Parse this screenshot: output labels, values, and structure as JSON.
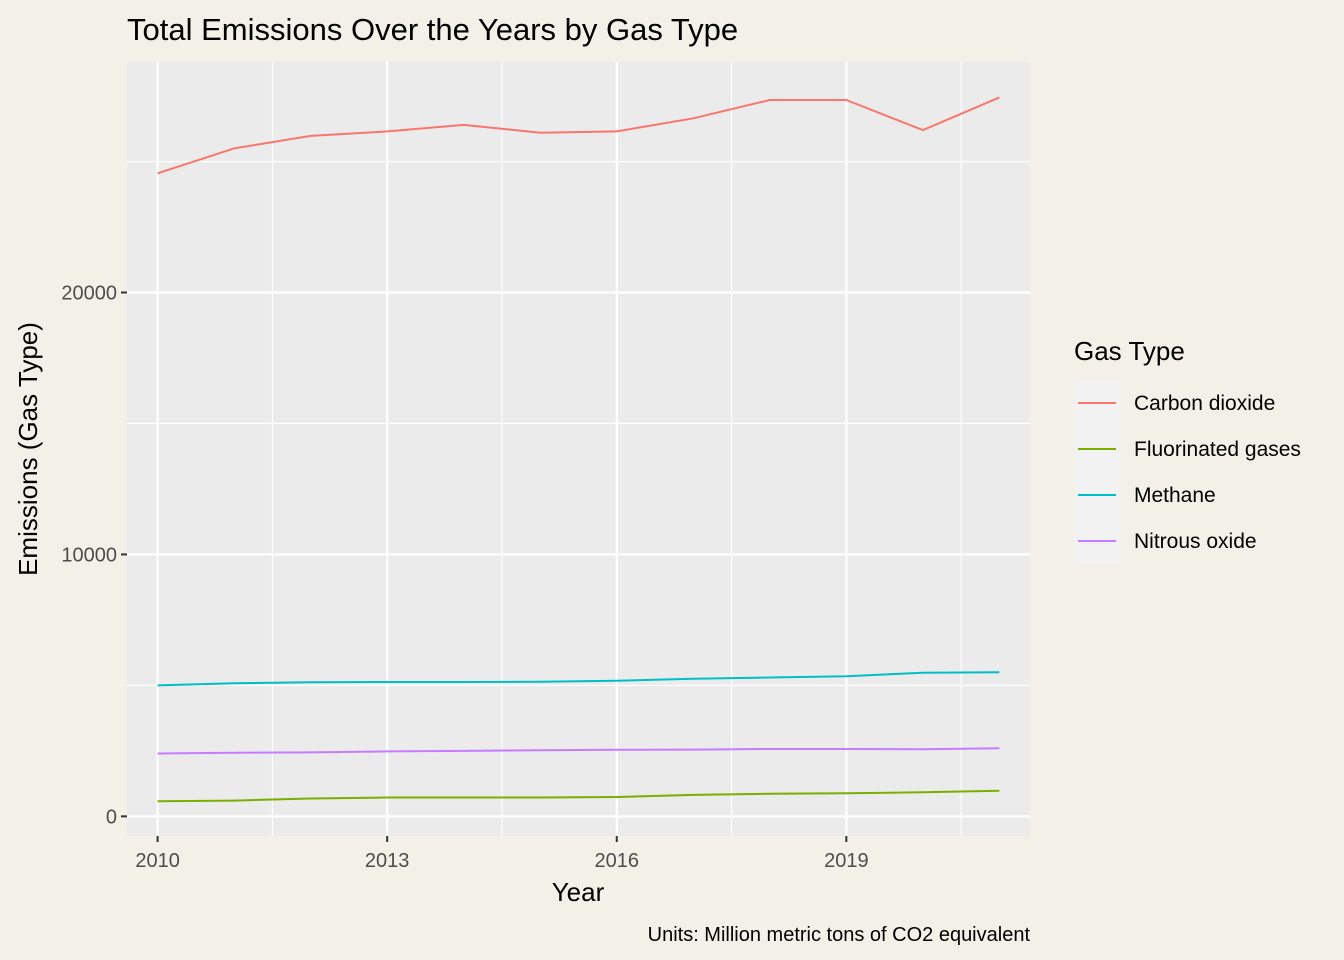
{
  "chart_data": {
    "type": "line",
    "title": "Total Emissions Over the Years by Gas Type",
    "xlabel": "Year",
    "ylabel": "Emissions (Gas Type)",
    "caption": "Units: Million metric tons of CO2 equivalent",
    "legend_title": "Gas Type",
    "legend_position": "right",
    "grid": true,
    "xlim": [
      2009.6,
      2021.4
    ],
    "ylim": [
      -750,
      28800
    ],
    "x_ticks": [
      2010,
      2013,
      2016,
      2019
    ],
    "x_tick_labels": [
      "2010",
      "2013",
      "2016",
      "2019"
    ],
    "y_ticks": [
      0,
      10000,
      20000
    ],
    "y_tick_labels": [
      "0",
      "10000",
      "20000"
    ],
    "x": [
      2010,
      2011,
      2012,
      2013,
      2014,
      2015,
      2016,
      2017,
      2018,
      2019,
      2020,
      2021
    ],
    "series": [
      {
        "name": "Carbon dioxide",
        "color": "#f8766d",
        "values": [
          24550,
          25500,
          25980,
          26150,
          26400,
          26100,
          26150,
          26650,
          27350,
          27350,
          26200,
          27450
        ]
      },
      {
        "name": "Fluorinated gases",
        "color": "#7cae00",
        "values": [
          580,
          600,
          680,
          720,
          720,
          720,
          740,
          820,
          860,
          880,
          920,
          980
        ]
      },
      {
        "name": "Methane",
        "color": "#00bfc4",
        "values": [
          5000,
          5080,
          5120,
          5130,
          5130,
          5140,
          5180,
          5250,
          5300,
          5350,
          5480,
          5500
        ]
      },
      {
        "name": "Nitrous oxide",
        "color": "#c77cff",
        "values": [
          2400,
          2430,
          2440,
          2480,
          2500,
          2520,
          2540,
          2550,
          2570,
          2570,
          2560,
          2600
        ]
      }
    ]
  }
}
